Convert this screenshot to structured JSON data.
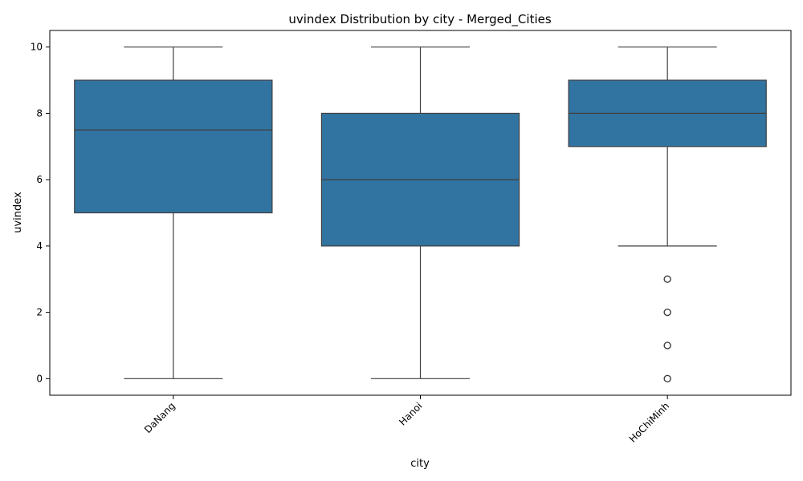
{
  "chart_data": {
    "type": "box",
    "title": "uvindex Distribution by city - Merged_Cities",
    "xlabel": "city",
    "ylabel": "uvindex",
    "categories": [
      "DaNang",
      "Hanoi",
      "HoChiMinh"
    ],
    "y_ticks": [
      0,
      2,
      4,
      6,
      8,
      10
    ],
    "ylim": [
      -0.5,
      10.5
    ],
    "grid": false,
    "legend": "none",
    "box_color": "#3274a1",
    "line_color": "#3f3f3f",
    "boxes": [
      {
        "category": "DaNang",
        "whisker_low": 0,
        "q1": 5,
        "median": 7.5,
        "q3": 9,
        "whisker_high": 10,
        "outliers": []
      },
      {
        "category": "Hanoi",
        "whisker_low": 0,
        "q1": 4,
        "median": 6,
        "q3": 8,
        "whisker_high": 10,
        "outliers": []
      },
      {
        "category": "HoChiMinh",
        "whisker_low": 4,
        "q1": 7,
        "median": 8,
        "q3": 9,
        "whisker_high": 10,
        "outliers": [
          3,
          2,
          1,
          0
        ]
      }
    ]
  }
}
